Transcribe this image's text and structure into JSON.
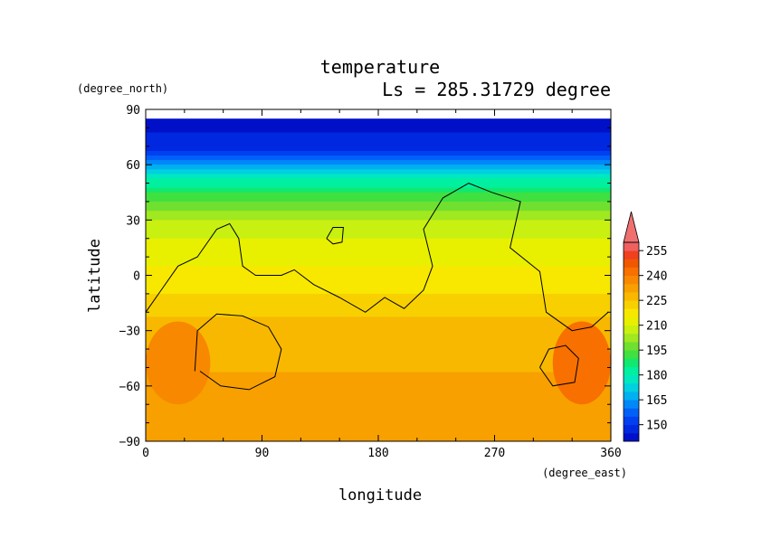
{
  "chart_data": {
    "type": "heatmap",
    "title": "temperature",
    "subtitle": "Ls = 285.31729 degree",
    "xlabel": "longitude",
    "ylabel": "latitude",
    "x_units": "(degree_east)",
    "y_units": "(degree_north)",
    "xlim": [
      0,
      360
    ],
    "ylim": [
      -90,
      90
    ],
    "x_ticks": [
      0,
      90,
      180,
      270,
      360
    ],
    "y_ticks": [
      90,
      60,
      30,
      0,
      -30,
      -60,
      -90
    ],
    "x_tick_labels": [
      "0",
      "90",
      "180",
      "270",
      "360"
    ],
    "y_tick_labels": [
      "90",
      "60",
      "30",
      "0",
      "−30",
      "−60",
      "−90"
    ],
    "colorbar": {
      "levels": [
        140,
        145,
        150,
        155,
        160,
        165,
        170,
        175,
        180,
        185,
        190,
        195,
        200,
        205,
        210,
        215,
        220,
        225,
        230,
        235,
        240,
        245,
        250,
        255,
        260
      ],
      "labels": [
        "150",
        "165",
        "180",
        "195",
        "210",
        "225",
        "240",
        "255"
      ],
      "label_values": [
        150,
        165,
        180,
        195,
        210,
        225,
        240,
        255
      ],
      "colors": [
        "#0010c8",
        "#0028e0",
        "#0040f0",
        "#0060f8",
        "#0088f8",
        "#00b0f0",
        "#00d0e0",
        "#00e8c0",
        "#00f0a0",
        "#10e870",
        "#40e040",
        "#70e030",
        "#a0e820",
        "#c8f010",
        "#e8f000",
        "#f8e800",
        "#f8d000",
        "#f8b800",
        "#f8a000",
        "#f88800",
        "#f87000",
        "#f05800",
        "#f04020",
        "#f06060"
      ],
      "overflow_color": "#f07070"
    },
    "lat_temperature_profile": [
      {
        "lat": 85,
        "temp": 142
      },
      {
        "lat": 70,
        "temp": 148
      },
      {
        "lat": 62,
        "temp": 160
      },
      {
        "lat": 55,
        "temp": 175
      },
      {
        "lat": 45,
        "temp": 190
      },
      {
        "lat": 35,
        "temp": 200
      },
      {
        "lat": 25,
        "temp": 208
      },
      {
        "lat": 10,
        "temp": 213
      },
      {
        "lat": -10,
        "temp": 220
      },
      {
        "lat": -25,
        "temp": 226
      },
      {
        "lat": -45,
        "temp": 229
      },
      {
        "lat": -65,
        "temp": 232
      },
      {
        "lat": -85,
        "temp": 233
      }
    ],
    "warm_regions": [
      {
        "lon": [
          0,
          50
        ],
        "lat": [
          -70,
          -25
        ],
        "temp": 238
      },
      {
        "lon": [
          315,
          360
        ],
        "lat": [
          -70,
          -25
        ],
        "temp": 240
      }
    ],
    "topography_contours": [
      [
        [
          0,
          -20
        ],
        [
          10,
          -10
        ],
        [
          25,
          5
        ],
        [
          40,
          10
        ],
        [
          55,
          25
        ],
        [
          65,
          28
        ],
        [
          72,
          20
        ],
        [
          75,
          5
        ],
        [
          85,
          0
        ],
        [
          105,
          0
        ],
        [
          115,
          3
        ],
        [
          130,
          -5
        ],
        [
          150,
          -12
        ],
        [
          170,
          -20
        ],
        [
          185,
          -12
        ],
        [
          200,
          -18
        ],
        [
          215,
          -8
        ],
        [
          222,
          5
        ],
        [
          215,
          25
        ],
        [
          230,
          42
        ],
        [
          250,
          50
        ],
        [
          268,
          45
        ],
        [
          290,
          40
        ],
        [
          282,
          15
        ],
        [
          305,
          2
        ],
        [
          310,
          -20
        ],
        [
          330,
          -30
        ],
        [
          345,
          -28
        ],
        [
          358,
          -20
        ]
      ],
      [
        [
          140,
          20
        ],
        [
          145,
          26
        ],
        [
          153,
          26
        ],
        [
          152,
          18
        ],
        [
          145,
          17
        ],
        [
          140,
          20
        ]
      ],
      [
        [
          38,
          -52
        ],
        [
          40,
          -30
        ],
        [
          55,
          -21
        ],
        [
          75,
          -22
        ],
        [
          95,
          -28
        ],
        [
          105,
          -40
        ],
        [
          100,
          -55
        ],
        [
          80,
          -62
        ],
        [
          58,
          -60
        ],
        [
          42,
          -52
        ]
      ],
      [
        [
          305,
          -50
        ],
        [
          312,
          -40
        ],
        [
          325,
          -38
        ],
        [
          335,
          -45
        ],
        [
          332,
          -58
        ],
        [
          315,
          -60
        ],
        [
          305,
          -50
        ]
      ]
    ]
  }
}
